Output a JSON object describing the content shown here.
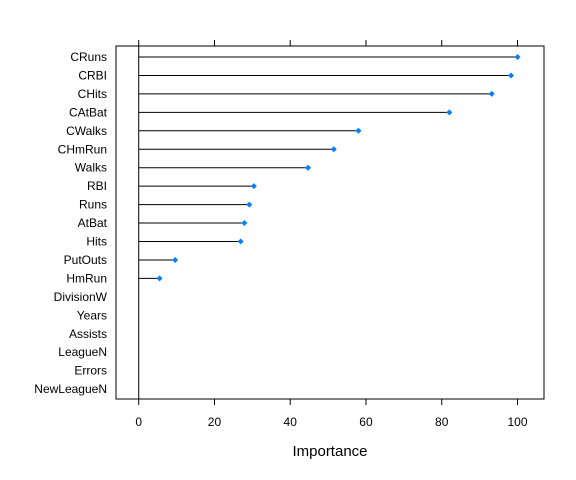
{
  "chart_data": {
    "type": "scatter",
    "xlabel": "Importance",
    "xlim": [
      -6,
      107
    ],
    "x_ticks": [
      0,
      20,
      40,
      60,
      80,
      100
    ],
    "x_tick_labels": [
      "0",
      "20",
      "40",
      "60",
      "80",
      "100"
    ],
    "marker_color": "#0080ff",
    "line_color": "#000000",
    "categories": [
      "CRuns",
      "CRBI",
      "CHits",
      "CAtBat",
      "CWalks",
      "CHmRun",
      "Walks",
      "RBI",
      "Runs",
      "AtBat",
      "Hits",
      "PutOuts",
      "HmRun",
      "DivisionW",
      "Years",
      "Assists",
      "LeagueN",
      "Errors",
      "NewLeagueN"
    ],
    "values": [
      100,
      98.3,
      93.2,
      82,
      58,
      51.5,
      44.7,
      30.4,
      29.2,
      27.9,
      26.9,
      9.6,
      5.5,
      0,
      0,
      0,
      0,
      0,
      0
    ]
  }
}
